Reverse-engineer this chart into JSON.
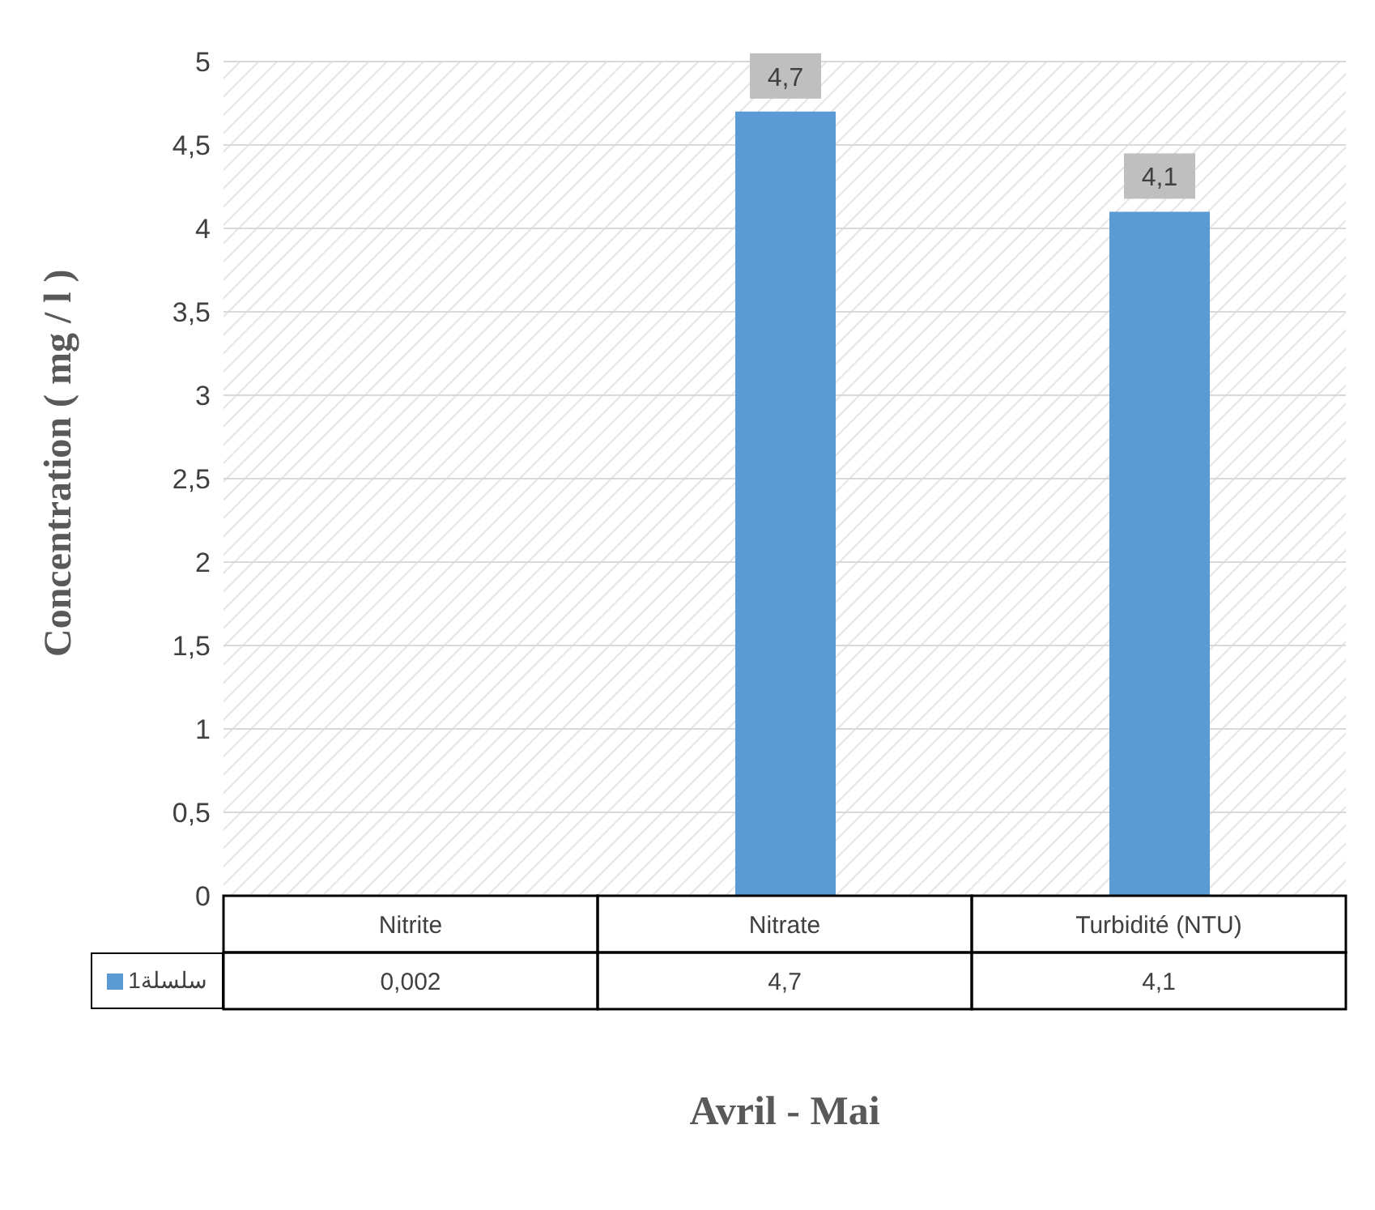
{
  "chart_data": {
    "type": "bar",
    "ylabel": "Concentration ( mg / l )",
    "xlabel": "Avril - Mai",
    "categories": [
      "Nitrite",
      "Nitrate",
      "Turbidité (NTU)"
    ],
    "series": [
      {
        "name": "سلسلة1",
        "color": "#5b9bd5",
        "values": [
          0.002,
          4.7,
          4.1
        ],
        "value_labels": [
          "0,002",
          "4,7",
          "4,1"
        ]
      }
    ],
    "ylim": [
      0,
      5
    ],
    "yticks": [
      0,
      {
        "value": 0.5,
        "label": "0,5"
      },
      1,
      {
        "value": 1.5,
        "label": "1,5"
      },
      2,
      {
        "value": 2.5,
        "label": "2,5"
      },
      3,
      {
        "value": 3.5,
        "label": "3,5"
      },
      4,
      {
        "value": 4.5,
        "label": "4,5"
      },
      5
    ],
    "grid": "y",
    "legend": "bottom left",
    "data_labels": true
  }
}
